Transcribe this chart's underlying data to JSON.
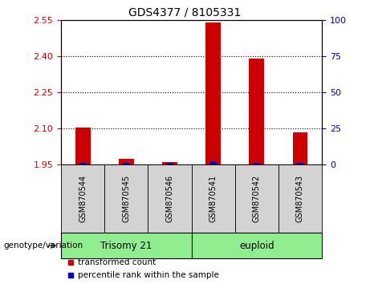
{
  "title": "GDS4377 / 8105331",
  "samples": [
    "GSM870544",
    "GSM870545",
    "GSM870546",
    "GSM870541",
    "GSM870542",
    "GSM870543"
  ],
  "red_values": [
    2.105,
    1.975,
    1.96,
    2.54,
    2.39,
    2.085
  ],
  "blue_values": [
    1.957,
    1.957,
    1.959,
    1.966,
    1.957,
    1.957
  ],
  "ylim_left": [
    1.95,
    2.55
  ],
  "ylim_right": [
    0,
    100
  ],
  "yticks_left": [
    1.95,
    2.1,
    2.25,
    2.4,
    2.55
  ],
  "yticks_right": [
    0,
    25,
    50,
    75,
    100
  ],
  "left_color": "#cc0000",
  "right_color": "#0000cc",
  "sample_bg_color": "#d3d3d3",
  "trisomy_color": "#90EE90",
  "euploid_color": "#90EE90",
  "legend_red_label": "transformed count",
  "legend_blue_label": "percentile rank within the sample",
  "genotype_label": "genotype/variation"
}
